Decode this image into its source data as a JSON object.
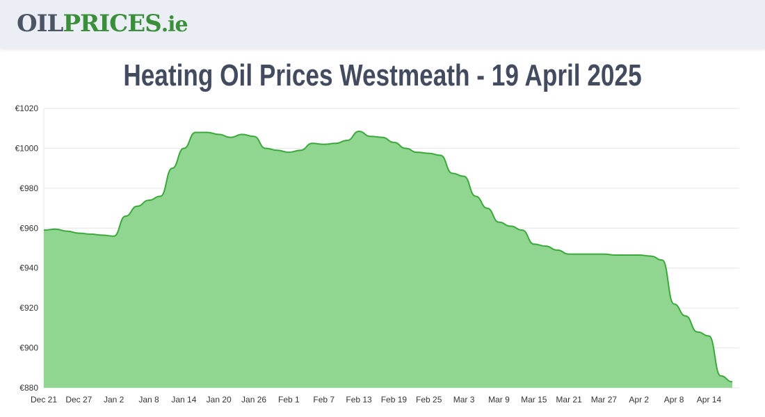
{
  "header": {
    "logo": [
      "OIL",
      "PRICES",
      ".ie"
    ]
  },
  "chart_data": {
    "type": "area",
    "title": "Heating Oil Prices Westmeath - 19 April 2025",
    "categories": [
      "Dec 21",
      null,
      null,
      "Dec 27",
      null,
      null,
      "Jan 2",
      null,
      null,
      "Jan 8",
      null,
      null,
      "Jan 14",
      null,
      null,
      "Jan 20",
      null,
      null,
      "Jan 26",
      null,
      null,
      "Feb 1",
      null,
      null,
      "Feb 7",
      null,
      null,
      "Feb 13",
      null,
      null,
      "Feb 19",
      null,
      null,
      "Feb 25",
      null,
      null,
      "Mar 3",
      null,
      null,
      "Mar 9",
      null,
      null,
      "Mar 15",
      null,
      null,
      "Mar 21",
      null,
      null,
      "Mar 27",
      null,
      null,
      "Apr 2",
      null,
      null,
      "Apr 8",
      null,
      null,
      "Apr 14",
      null,
      null
    ],
    "series": [
      {
        "color": "#3aa83a",
        "fill": "#90d690",
        "values": [
          959,
          959.5,
          958.5,
          957.5,
          957,
          956.5,
          956,
          966,
          971,
          974,
          976,
          990,
          1000,
          1008,
          1008,
          1007,
          1005.5,
          1007,
          1006,
          1000,
          999,
          998,
          999,
          1002.5,
          1002,
          1002.5,
          1004,
          1008.5,
          1006,
          1005.5,
          1003,
          1000,
          998,
          997.5,
          996.5,
          987.5,
          986,
          976,
          970,
          963,
          961,
          959,
          952,
          951,
          949,
          947,
          947,
          947,
          947,
          946.5,
          946.5,
          946.5,
          946,
          944,
          922,
          916,
          908,
          906,
          886,
          883
        ]
      }
    ],
    "ylim": [
      880,
      1020
    ],
    "yticks": [
      {
        "value": 880,
        "label": "€880"
      },
      {
        "value": 900,
        "label": "€900"
      },
      {
        "value": 920,
        "label": "€920"
      },
      {
        "value": 940,
        "label": "€940"
      },
      {
        "value": 960,
        "label": "€960"
      },
      {
        "value": 980,
        "label": "€980"
      },
      {
        "value": 1000,
        "label": "€1000"
      },
      {
        "value": 1020,
        "label": "€1020"
      }
    ],
    "grid": true
  }
}
